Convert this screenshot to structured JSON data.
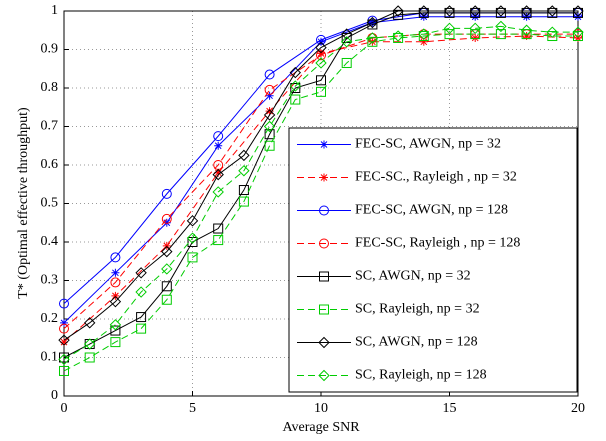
{
  "chart_data": {
    "type": "line",
    "x_label": "Average SNR",
    "y_label": "T* (Optimal effective throughput)",
    "xlim": [
      0,
      20
    ],
    "ylim": [
      0,
      1
    ],
    "xticks": [
      0,
      5,
      10,
      15,
      20
    ],
    "yticks": [
      0,
      0.1,
      0.2,
      0.3,
      0.4,
      0.5,
      0.6,
      0.7,
      0.8,
      0.9,
      1
    ],
    "grid": true,
    "legend": "lower right",
    "series": [
      {
        "name": "FEC-SC, AWGN, np = 32",
        "color": "#0000ff",
        "dash": false,
        "marker": "star",
        "x": [
          0,
          2,
          4,
          6,
          8,
          10,
          12,
          14,
          16,
          18,
          20
        ],
        "values": [
          0.19,
          0.32,
          0.45,
          0.65,
          0.78,
          0.92,
          0.97,
          0.985,
          0.985,
          0.985,
          0.985
        ]
      },
      {
        "name": "FEC-SC., Rayleigh , np = 32",
        "color": "#ff0000",
        "dash": true,
        "marker": "star",
        "x": [
          0,
          2,
          4,
          6,
          8,
          10,
          12,
          14,
          16,
          18,
          20
        ],
        "values": [
          0.14,
          0.26,
          0.39,
          0.58,
          0.74,
          0.89,
          0.92,
          0.92,
          0.93,
          0.935,
          0.93
        ]
      },
      {
        "name": "FEC-SC, AWGN, np = 128",
        "color": "#0000ff",
        "dash": false,
        "marker": "circle",
        "x": [
          0,
          2,
          4,
          6,
          8,
          10,
          12,
          14,
          16,
          18,
          20
        ],
        "values": [
          0.24,
          0.36,
          0.525,
          0.675,
          0.835,
          0.925,
          0.975,
          0.995,
          0.995,
          0.995,
          0.995
        ]
      },
      {
        "name": "FEC-SC, Rayleigh , np = 128",
        "color": "#ff0000",
        "dash": true,
        "marker": "circle",
        "x": [
          0,
          2,
          4,
          6,
          8,
          10,
          12,
          14,
          16,
          18,
          20
        ],
        "values": [
          0.175,
          0.295,
          0.46,
          0.6,
          0.795,
          0.885,
          0.93,
          0.94,
          0.94,
          0.94,
          0.94
        ]
      },
      {
        "name": "SC, AWGN, np = 32",
        "color": "#000000",
        "dash": false,
        "marker": "square",
        "x": [
          0,
          1,
          2,
          3,
          4,
          5,
          6,
          7,
          8,
          9,
          10,
          11,
          12,
          13,
          14,
          15,
          16,
          17,
          18,
          19,
          20
        ],
        "values": [
          0.1,
          0.135,
          0.17,
          0.205,
          0.285,
          0.4,
          0.435,
          0.535,
          0.68,
          0.8,
          0.82,
          0.93,
          0.965,
          0.99,
          0.995,
          0.995,
          0.995,
          0.995,
          0.995,
          0.995,
          0.995
        ]
      },
      {
        "name": "SC, Rayleigh, np = 32",
        "color": "#00cc00",
        "dash": true,
        "marker": "square",
        "x": [
          0,
          1,
          2,
          3,
          4,
          5,
          6,
          7,
          8,
          9,
          10,
          11,
          12,
          13,
          14,
          15,
          16,
          17,
          18,
          19,
          20
        ],
        "values": [
          0.065,
          0.1,
          0.14,
          0.175,
          0.25,
          0.36,
          0.405,
          0.505,
          0.65,
          0.77,
          0.79,
          0.865,
          0.92,
          0.93,
          0.935,
          0.94,
          0.94,
          0.94,
          0.94,
          0.935,
          0.935
        ]
      },
      {
        "name": "SC, AWGN, np = 128",
        "color": "#000000",
        "dash": false,
        "marker": "diamond",
        "x": [
          0,
          1,
          2,
          3,
          4,
          5,
          6,
          7,
          8,
          9,
          10,
          11,
          12,
          13,
          14,
          15,
          16,
          17,
          18,
          19,
          20
        ],
        "values": [
          0.145,
          0.19,
          0.245,
          0.32,
          0.375,
          0.455,
          0.575,
          0.625,
          0.73,
          0.84,
          0.905,
          0.94,
          0.97,
          1,
          1,
          1,
          1,
          1,
          1,
          1,
          1
        ]
      },
      {
        "name": "SC, Rayleigh, np = 128",
        "color": "#00cc00",
        "dash": true,
        "marker": "diamond",
        "x": [
          0,
          1,
          2,
          3,
          4,
          5,
          6,
          7,
          8,
          9,
          10,
          11,
          12,
          13,
          14,
          15,
          16,
          17,
          18,
          19,
          20
        ],
        "values": [
          0.095,
          0.135,
          0.185,
          0.27,
          0.33,
          0.41,
          0.53,
          0.585,
          0.7,
          0.805,
          0.865,
          0.92,
          0.93,
          0.935,
          0.94,
          0.955,
          0.955,
          0.96,
          0.95,
          0.945,
          0.945
        ]
      }
    ]
  }
}
